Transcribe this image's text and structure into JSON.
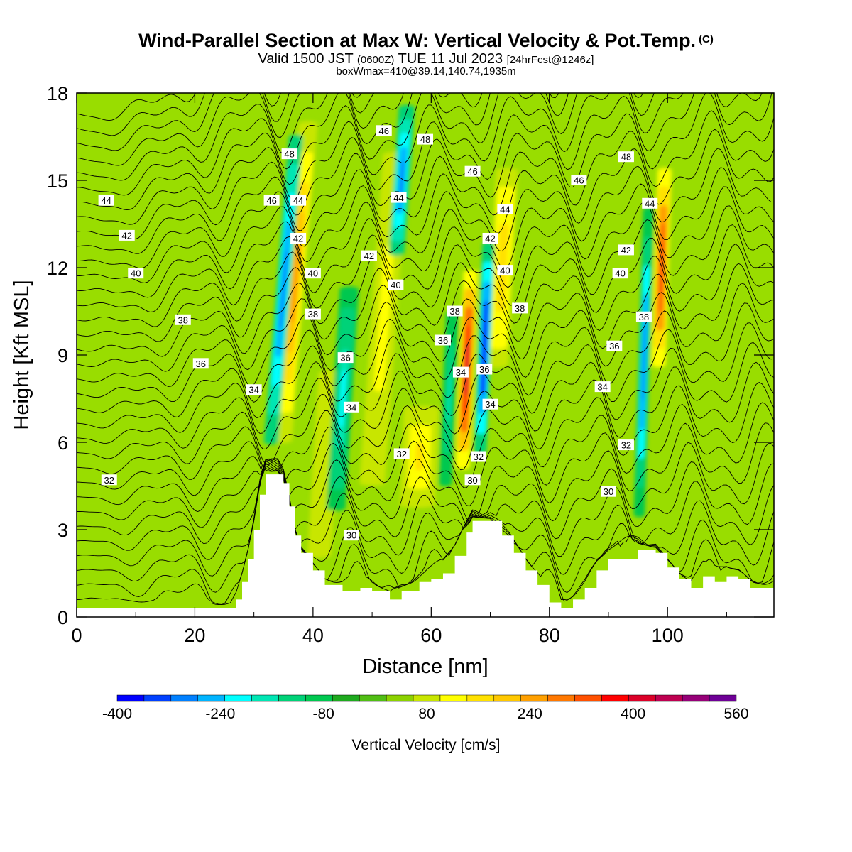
{
  "header": {
    "title": "Wind-Parallel Section at Max W: Vertical Velocity & Pot.Temp.",
    "copyright": "(C)",
    "valid_prefix": "Valid 1500 JST",
    "valid_utc": "(0600Z)",
    "valid_date": "TUE 11 Jul 2023",
    "forecast": "[24hrFcst@1246z]",
    "box_info": "boxWmax=410@39.14,140.74,1935m"
  },
  "chart_data": {
    "type": "heatmap",
    "xlabel": "Distance [nm]",
    "ylabel": "Height [Kft MSL]",
    "xlim": [
      0,
      118
    ],
    "ylim": [
      0,
      18
    ],
    "x_ticks": [
      0,
      20,
      40,
      60,
      80,
      100
    ],
    "y_ticks": [
      0,
      3,
      6,
      9,
      12,
      15,
      18
    ],
    "fill_variable": "Vertical Velocity [cm/s]",
    "colorbar": {
      "label": "Vertical Velocity [cm/s]",
      "tick_labels": [
        "-400",
        "-240",
        "-80",
        "80",
        "240",
        "400",
        "560"
      ],
      "tick_values": [
        -400,
        -240,
        -80,
        80,
        240,
        400,
        560
      ],
      "colors": [
        "#0000ff",
        "#0040ff",
        "#0080ff",
        "#00b4ff",
        "#00ffff",
        "#00e6b4",
        "#00d278",
        "#00c850",
        "#1eaa1e",
        "#50be14",
        "#8cd200",
        "#c8e600",
        "#ffff00",
        "#ffe100",
        "#ffc800",
        "#ffa000",
        "#ff7800",
        "#ff5000",
        "#ff0000",
        "#dc0028",
        "#be0050",
        "#960078",
        "#6e0096"
      ]
    },
    "background_level_color": "#99dd00",
    "updrafts": [
      {
        "x": 37,
        "z_bottom": 5,
        "z_top": 18,
        "tilt": 0.4,
        "width": 1.2,
        "w_peak": 260
      },
      {
        "x": 42,
        "z_bottom": 1.5,
        "z_top": 9,
        "tilt": 0.3,
        "width": 1.5,
        "w_peak": 100
      },
      {
        "x": 52,
        "z_bottom": 3.5,
        "z_top": 17,
        "tilt": 0.35,
        "width": 1.6,
        "w_peak": 120
      },
      {
        "x": 58,
        "z_bottom": 3.5,
        "z_top": 7.5,
        "tilt": 0.2,
        "width": 2.2,
        "w_peak": 150
      },
      {
        "x": 66,
        "z_bottom": 4.5,
        "z_top": 12.5,
        "tilt": 0.2,
        "width": 0.9,
        "w_peak": 410
      },
      {
        "x": 72,
        "z_bottom": 8,
        "z_top": 16,
        "tilt": 0.25,
        "width": 1.4,
        "w_peak": 170
      },
      {
        "x": 99,
        "z_bottom": 8,
        "z_top": 16,
        "tilt": 0.15,
        "width": 0.9,
        "w_peak": 340
      }
    ],
    "downdrafts": [
      {
        "x": 35,
        "z_bottom": 5,
        "z_top": 17.5,
        "tilt": 0.4,
        "width": 0.9,
        "w_peak": -300
      },
      {
        "x": 45,
        "z_bottom": 3,
        "z_top": 12,
        "tilt": 0.3,
        "width": 1.2,
        "w_peak": -200
      },
      {
        "x": 55,
        "z_bottom": 12,
        "z_top": 18,
        "tilt": 0.35,
        "width": 1.0,
        "w_peak": -300
      },
      {
        "x": 63,
        "z_bottom": 4,
        "z_top": 11,
        "tilt": 0.2,
        "width": 0.8,
        "w_peak": -160
      },
      {
        "x": 69,
        "z_bottom": 5,
        "z_top": 13.5,
        "tilt": 0.2,
        "width": 0.8,
        "w_peak": -400
      },
      {
        "x": 96,
        "z_bottom": 2.5,
        "z_top": 15,
        "tilt": 0.15,
        "width": 0.7,
        "w_peak": -280
      }
    ],
    "terrain": [
      [
        0,
        0.3
      ],
      [
        26,
        0.3
      ],
      [
        27,
        0.6
      ],
      [
        28,
        1.2
      ],
      [
        29,
        2
      ],
      [
        30,
        3
      ],
      [
        31,
        4.2
      ],
      [
        32,
        4.9
      ],
      [
        34,
        4.9
      ],
      [
        35,
        4.6
      ],
      [
        36,
        3.8
      ],
      [
        37,
        2.8
      ],
      [
        38,
        2.2
      ],
      [
        40,
        1.6
      ],
      [
        42,
        1.1
      ],
      [
        45,
        0.9
      ],
      [
        48,
        1.0
      ],
      [
        50,
        0.9
      ],
      [
        53,
        0.6
      ],
      [
        55,
        0.9
      ],
      [
        58,
        1.2
      ],
      [
        60,
        1.3
      ],
      [
        62,
        1.5
      ],
      [
        64,
        2.1
      ],
      [
        66,
        2.9
      ],
      [
        67,
        3.3
      ],
      [
        70,
        3.3
      ],
      [
        72,
        2.8
      ],
      [
        74,
        2.2
      ],
      [
        76,
        1.6
      ],
      [
        78,
        1.1
      ],
      [
        80,
        0.5
      ],
      [
        82,
        0.3
      ],
      [
        84,
        0.6
      ],
      [
        86,
        1.0
      ],
      [
        88,
        1.6
      ],
      [
        90,
        2.0
      ],
      [
        95,
        2.3
      ],
      [
        98,
        2.2
      ],
      [
        100,
        1.7
      ],
      [
        102,
        1.3
      ],
      [
        104,
        1.0
      ],
      [
        106,
        1.4
      ],
      [
        108,
        1.2
      ],
      [
        110,
        1.4
      ],
      [
        112,
        1.3
      ],
      [
        114,
        1.0
      ],
      [
        118,
        1.0
      ]
    ],
    "theta_contours": {
      "units": "K",
      "levels": [
        30,
        32,
        34,
        36,
        38,
        40,
        42,
        44,
        46,
        48
      ],
      "labels": [
        {
          "text": "44",
          "x": 5,
          "z": 14.3
        },
        {
          "text": "42",
          "x": 8.5,
          "z": 13.1
        },
        {
          "text": "40",
          "x": 10,
          "z": 11.8
        },
        {
          "text": "38",
          "x": 18,
          "z": 10.2
        },
        {
          "text": "36",
          "x": 21,
          "z": 8.7
        },
        {
          "text": "34",
          "x": 30,
          "z": 7.8
        },
        {
          "text": "32",
          "x": 5.5,
          "z": 4.7
        },
        {
          "text": "48",
          "x": 36,
          "z": 15.9
        },
        {
          "text": "46",
          "x": 33,
          "z": 14.3
        },
        {
          "text": "44",
          "x": 37.5,
          "z": 14.3
        },
        {
          "text": "42",
          "x": 37.5,
          "z": 13.0
        },
        {
          "text": "40",
          "x": 40,
          "z": 11.8
        },
        {
          "text": "38",
          "x": 40,
          "z": 10.4
        },
        {
          "text": "36",
          "x": 45.5,
          "z": 8.9
        },
        {
          "text": "34",
          "x": 46.5,
          "z": 7.2
        },
        {
          "text": "30",
          "x": 46.5,
          "z": 2.8
        },
        {
          "text": "46",
          "x": 52,
          "z": 16.7
        },
        {
          "text": "48",
          "x": 59,
          "z": 16.4
        },
        {
          "text": "44",
          "x": 54.5,
          "z": 14.4
        },
        {
          "text": "42",
          "x": 49.5,
          "z": 12.4
        },
        {
          "text": "40",
          "x": 54,
          "z": 11.4
        },
        {
          "text": "32",
          "x": 55,
          "z": 5.6
        },
        {
          "text": "38",
          "x": 64,
          "z": 10.5
        },
        {
          "text": "36",
          "x": 62,
          "z": 9.5
        },
        {
          "text": "34",
          "x": 65,
          "z": 8.4
        },
        {
          "text": "36",
          "x": 69,
          "z": 8.5
        },
        {
          "text": "34",
          "x": 70,
          "z": 7.3
        },
        {
          "text": "32",
          "x": 68,
          "z": 5.5
        },
        {
          "text": "30",
          "x": 67,
          "z": 4.7
        },
        {
          "text": "46",
          "x": 67,
          "z": 15.3
        },
        {
          "text": "44",
          "x": 72.5,
          "z": 14.0
        },
        {
          "text": "42",
          "x": 70,
          "z": 13.0
        },
        {
          "text": "40",
          "x": 72.5,
          "z": 11.9
        },
        {
          "text": "38",
          "x": 75,
          "z": 10.6
        },
        {
          "text": "46",
          "x": 85,
          "z": 15.0
        },
        {
          "text": "48",
          "x": 93,
          "z": 15.8
        },
        {
          "text": "44",
          "x": 97,
          "z": 14.2
        },
        {
          "text": "42",
          "x": 93,
          "z": 12.6
        },
        {
          "text": "40",
          "x": 92,
          "z": 11.8
        },
        {
          "text": "38",
          "x": 96,
          "z": 10.3
        },
        {
          "text": "36",
          "x": 91,
          "z": 9.3
        },
        {
          "text": "34",
          "x": 89,
          "z": 7.9
        },
        {
          "text": "32",
          "x": 93,
          "z": 5.9
        },
        {
          "text": "30",
          "x": 90,
          "z": 4.3
        }
      ]
    }
  }
}
